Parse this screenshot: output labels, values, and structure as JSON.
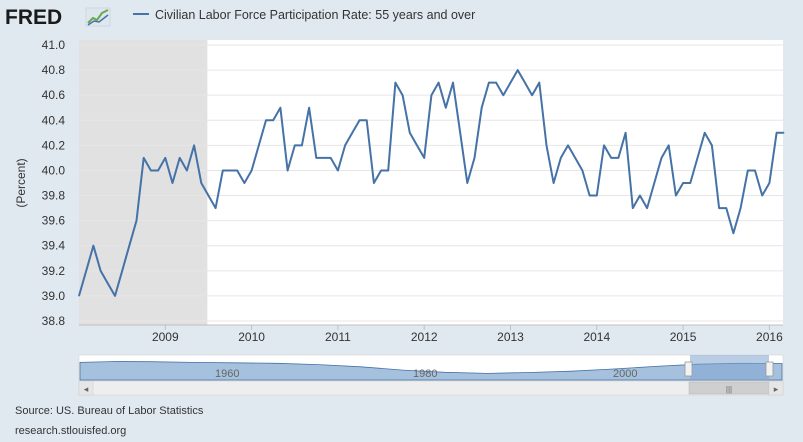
{
  "header": {
    "logo_text": "FRED",
    "logo_icon": "chart-line-icon"
  },
  "colors": {
    "background": "#e1e9f0",
    "plot_bg": "#ffffff",
    "series": "#4572a7",
    "recession": "#e1e1e1",
    "grid": "#e6e6e6",
    "navigator_fill": "#a6c1dd",
    "navigator_mask": "#7fa6cf"
  },
  "chart_data": {
    "type": "line",
    "title": "",
    "xlabel": "",
    "ylabel": "(Percent)",
    "ylim": [
      38.8,
      41.0
    ],
    "yticks": [
      "38.8",
      "39.0",
      "39.2",
      "39.4",
      "39.6",
      "39.8",
      "40.0",
      "40.2",
      "40.4",
      "40.6",
      "40.8",
      "41.0"
    ],
    "xticks": [
      "2009",
      "2010",
      "2011",
      "2012",
      "2013",
      "2014",
      "2015",
      "2016"
    ],
    "grid": "horizontal",
    "legend_position": "top",
    "recession_shading": {
      "start": "2008-01",
      "end": "2009-06"
    },
    "series": [
      {
        "name": "Civilian Labor Force Participation Rate: 55 years and over",
        "start": "2008-01",
        "frequency": "monthly",
        "values": [
          39.0,
          39.2,
          39.4,
          39.2,
          39.1,
          39.0,
          39.2,
          39.4,
          39.6,
          40.1,
          40.0,
          40.0,
          40.1,
          39.9,
          40.1,
          40.0,
          40.2,
          39.9,
          39.8,
          39.7,
          40.0,
          40.0,
          40.0,
          39.9,
          40.0,
          40.2,
          40.4,
          40.4,
          40.5,
          40.0,
          40.2,
          40.2,
          40.5,
          40.1,
          40.1,
          40.1,
          40.0,
          40.2,
          40.3,
          40.4,
          40.4,
          39.9,
          40.0,
          40.0,
          40.7,
          40.6,
          40.3,
          40.2,
          40.1,
          40.6,
          40.7,
          40.5,
          40.7,
          40.3,
          39.9,
          40.1,
          40.5,
          40.7,
          40.7,
          40.6,
          40.7,
          40.8,
          40.7,
          40.6,
          40.7,
          40.2,
          39.9,
          40.1,
          40.2,
          40.1,
          40.0,
          39.8,
          39.8,
          40.2,
          40.1,
          40.1,
          40.3,
          39.7,
          39.8,
          39.7,
          39.9,
          40.1,
          40.2,
          39.8,
          39.9,
          39.9,
          40.1,
          40.3,
          40.2,
          39.7,
          39.7,
          39.5,
          39.7,
          40.0,
          40.0,
          39.8,
          39.9,
          40.3,
          40.3
        ]
      }
    ]
  },
  "navigator": {
    "labels": [
      "1960",
      "1980",
      "2000"
    ],
    "handle_label": "|||",
    "left_arrow": "◂",
    "right_arrow": "▸"
  },
  "footer": {
    "source": "Source: US. Bureau of Labor Statistics",
    "url": "research.stlouisfed.org"
  }
}
